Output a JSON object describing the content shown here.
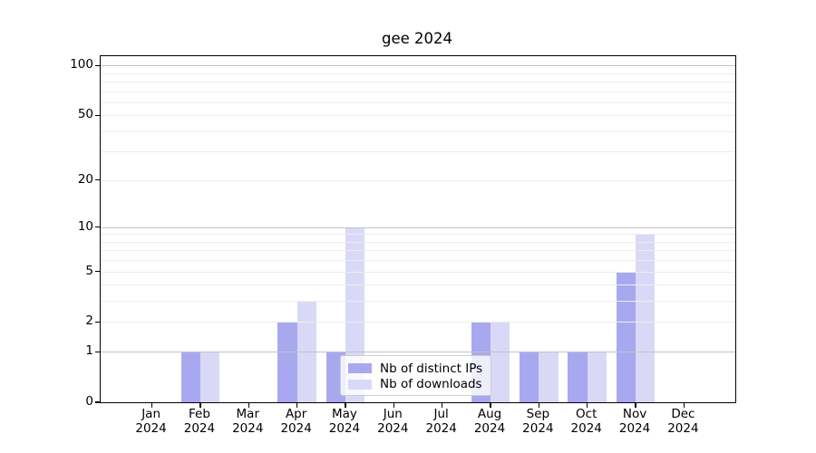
{
  "title": "gee 2024",
  "chart_data": {
    "type": "bar",
    "title": "gee 2024",
    "categories": [
      "Jan\n2024",
      "Feb\n2024",
      "Mar\n2024",
      "Apr\n2024",
      "May\n2024",
      "Jun\n2024",
      "Jul\n2024",
      "Aug\n2024",
      "Sep\n2024",
      "Oct\n2024",
      "Nov\n2024",
      "Dec\n2024"
    ],
    "series": [
      {
        "name": "Nb of distinct IPs",
        "color": "#a8a8f0",
        "values": [
          0,
          1,
          0,
          2,
          1,
          0,
          0,
          2,
          1,
          1,
          5,
          0
        ]
      },
      {
        "name": "Nb of downloads",
        "color": "#d9d9f7",
        "values": [
          0,
          1,
          0,
          3,
          10,
          0,
          0,
          2,
          1,
          1,
          9,
          0
        ]
      }
    ],
    "xlabel": "",
    "ylabel": "",
    "yscale": "log1p",
    "ylim": [
      0,
      113.5
    ],
    "yticks_labeled": [
      0,
      1,
      2,
      5,
      10,
      20,
      50,
      100
    ],
    "ygrid_major": [
      1,
      10,
      100
    ],
    "ygrid_minor": [
      2,
      3,
      4,
      5,
      6,
      7,
      8,
      9,
      20,
      30,
      40,
      50,
      60,
      70,
      80,
      90
    ],
    "grid": true,
    "legend_position": "lower center",
    "colors": {
      "grid_major": "#c2c2c2",
      "grid_minor": "#ededed",
      "spine": "#000000"
    }
  }
}
